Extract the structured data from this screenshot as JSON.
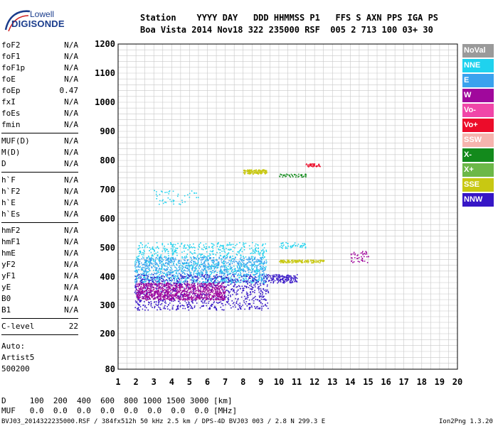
{
  "logo": {
    "line1": "Lowell",
    "line2": "DIGISONDE"
  },
  "header": {
    "row1": "Station    YYYY DAY   DDD HHMMSS P1   FFS S AXN PPS IGA PS",
    "row2": "Boa Vista 2014 Nov18 322 235000 RSF  005 2 713 100 03+ 30"
  },
  "params": {
    "group1": [
      {
        "name": "foF2",
        "value": "N/A"
      },
      {
        "name": "foF1",
        "value": "N/A"
      },
      {
        "name": "foF1p",
        "value": "N/A"
      },
      {
        "name": "foE",
        "value": "N/A"
      },
      {
        "name": "foEp",
        "value": "0.47"
      },
      {
        "name": "fxI",
        "value": "N/A"
      },
      {
        "name": "foEs",
        "value": "N/A"
      },
      {
        "name": "fmin",
        "value": "N/A"
      }
    ],
    "group2": [
      {
        "name": "MUF(D)",
        "value": "N/A"
      },
      {
        "name": "M(D)",
        "value": "N/A"
      },
      {
        "name": "D",
        "value": "N/A"
      }
    ],
    "group3": [
      {
        "name": "h`F",
        "value": "N/A"
      },
      {
        "name": "h`F2",
        "value": "N/A"
      },
      {
        "name": "h`E",
        "value": "N/A"
      },
      {
        "name": "h`Es",
        "value": "N/A"
      }
    ],
    "group4": [
      {
        "name": "hmF2",
        "value": "N/A"
      },
      {
        "name": "hmF1",
        "value": "N/A"
      },
      {
        "name": "hmE",
        "value": "N/A"
      },
      {
        "name": "yF2",
        "value": "N/A"
      },
      {
        "name": "yF1",
        "value": "N/A"
      },
      {
        "name": "yE",
        "value": "N/A"
      },
      {
        "name": "B0",
        "value": "N/A"
      },
      {
        "name": "B1",
        "value": "N/A"
      }
    ],
    "group5": [
      {
        "name": "C-level",
        "value": "22"
      }
    ]
  },
  "auto": {
    "line1": "Auto:",
    "line2": "Artist5",
    "line3": "500200"
  },
  "legend": [
    {
      "label": "NoVal",
      "color": "#9a9a9a"
    },
    {
      "label": "NNE",
      "color": "#1fd2ee"
    },
    {
      "label": "E",
      "color": "#3aa2ee"
    },
    {
      "label": "W",
      "color": "#a0089c"
    },
    {
      "label": "Vo-",
      "color": "#f046a8"
    },
    {
      "label": "Vo+",
      "color": "#ec0c2a"
    },
    {
      "label": "SSW",
      "color": "#f6b4ae"
    },
    {
      "label": "X-",
      "color": "#138a1c"
    },
    {
      "label": "X+",
      "color": "#6cb848"
    },
    {
      "label": "SSE",
      "color": "#c8c812"
    },
    {
      "label": "NNW",
      "color": "#3616c6"
    }
  ],
  "footer": {
    "d_row": "D     100  200  400  600  800 1000 1500 3000 [km]",
    "muf_row": "MUF   0.0  0.0  0.0  0.0  0.0  0.0  0.0  0.0 [MHz]",
    "file_row": "BVJ03_2014322235000.RSF / 384fx512h 50 kHz 2.5 km / DPS-4D BVJ03 003 / 2.8 N 299.3 E",
    "version": "Ion2Png 1.3.20"
  },
  "chart_data": {
    "type": "scatter",
    "xlim": [
      1,
      20
    ],
    "ylim": [
      80,
      1200
    ],
    "x_ticks": [
      1,
      2,
      3,
      4,
      5,
      6,
      7,
      8,
      9,
      10,
      11,
      12,
      13,
      14,
      15,
      16,
      17,
      18,
      19,
      20
    ],
    "y_ticks": [
      80,
      200,
      300,
      400,
      500,
      600,
      700,
      800,
      900,
      1000,
      1100,
      1200
    ],
    "x_unit": "MHz",
    "y_unit": "km",
    "grid": true,
    "legend_position": "right",
    "clusters": [
      {
        "label": "NNE",
        "x": [
          1.9,
          9.3
        ],
        "y": [
          380,
          520
        ],
        "density": "dense"
      },
      {
        "label": "E",
        "x": [
          1.9,
          9.3
        ],
        "y": [
          380,
          470
        ],
        "density": "dense"
      },
      {
        "label": "NNW",
        "x": [
          1.9,
          9.4
        ],
        "y": [
          285,
          410
        ],
        "density": "dense"
      },
      {
        "label": "W",
        "x": [
          2.0,
          7.0
        ],
        "y": [
          320,
          380
        ],
        "density": "dense"
      },
      {
        "label": "NNW",
        "x": [
          9.3,
          11.0
        ],
        "y": [
          380,
          410
        ],
        "density": "medium"
      },
      {
        "label": "SSE",
        "x": [
          8.0,
          9.3
        ],
        "y": [
          755,
          770
        ],
        "density": "medium"
      },
      {
        "label": "SSE",
        "x": [
          10.0,
          12.5
        ],
        "y": [
          450,
          460
        ],
        "density": "medium"
      },
      {
        "label": "Vo+",
        "x": [
          11.5,
          12.3
        ],
        "y": [
          780,
          790
        ],
        "density": "light"
      },
      {
        "label": "W",
        "x": [
          14.0,
          15.0
        ],
        "y": [
          450,
          490
        ],
        "density": "light"
      },
      {
        "label": "X-",
        "x": [
          10.0,
          11.5
        ],
        "y": [
          745,
          755
        ],
        "density": "light"
      },
      {
        "label": "NNE",
        "x": [
          10.0,
          11.5
        ],
        "y": [
          500,
          520
        ],
        "density": "light"
      },
      {
        "label": "NNE",
        "x": [
          3.0,
          5.5
        ],
        "y": [
          650,
          700
        ],
        "density": "light"
      }
    ]
  }
}
